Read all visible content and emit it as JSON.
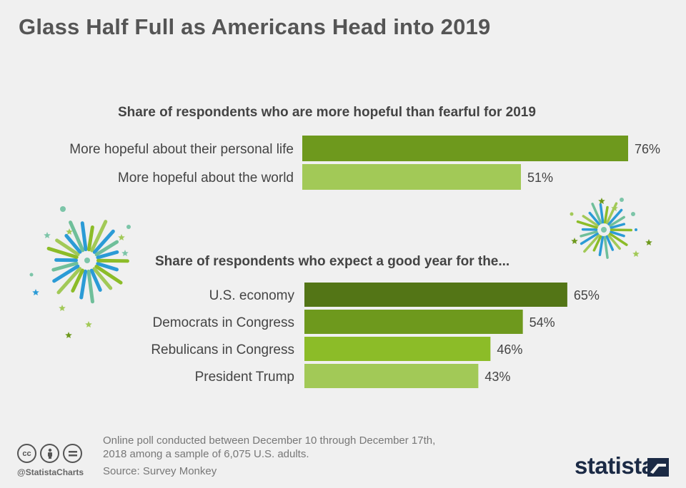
{
  "title": "Glass Half Full as Americans Head into 2019",
  "chart_data": [
    {
      "type": "bar",
      "orientation": "horizontal",
      "title": "Share of respondents who are more hopeful than fearful for 2019",
      "categories": [
        "More hopeful about their personal life",
        "More hopeful about the world"
      ],
      "values": [
        76,
        51
      ],
      "value_labels": [
        "76%",
        "51%"
      ],
      "colors": [
        "#6e991d",
        "#a2c957"
      ],
      "xlim": [
        0,
        100
      ],
      "unit": "%"
    },
    {
      "type": "bar",
      "orientation": "horizontal",
      "title": "Share of respondents who expect a good year for the...",
      "categories": [
        "U.S. economy",
        "Democrats  in Congress",
        "Rebulicans in Congress",
        "President Trump"
      ],
      "values": [
        65,
        54,
        46,
        43
      ],
      "value_labels": [
        "65%",
        "54%",
        "46%",
        "43%"
      ],
      "colors": [
        "#537516",
        "#6e991d",
        "#8cbc28",
        "#a2c957"
      ],
      "xlim": [
        0,
        100
      ],
      "unit": "%"
    }
  ],
  "footer": {
    "note": "Online poll conducted between December 10 through December 17th, 2018 among a sample of 6,075 U.S. adults.",
    "source": "Source: Survey Monkey",
    "handle": "@StatistaCharts",
    "brand": "statista",
    "license_icons": [
      "cc-icon",
      "attribution-icon",
      "no-derivatives-icon"
    ]
  }
}
